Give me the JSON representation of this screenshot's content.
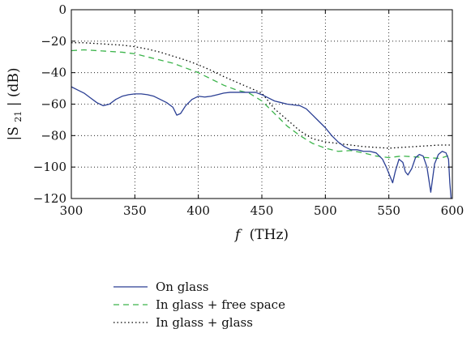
{
  "chart_data": {
    "type": "line",
    "title": "",
    "xlabel_var": "f",
    "xlabel_unit": "(THz)",
    "ylabel_prefix": "|S",
    "ylabel_sub": "21",
    "ylabel_suffix": "| (dB)",
    "xlim": [
      300,
      600
    ],
    "ylim": [
      -120,
      0
    ],
    "xticks": [
      300,
      350,
      400,
      450,
      500,
      550,
      600
    ],
    "yticks": [
      0,
      -20,
      -40,
      -60,
      -80,
      -100,
      -120
    ],
    "xtick_labels": [
      "300",
      "350",
      "400",
      "450",
      "500",
      "550",
      "600"
    ],
    "ytick_labels": [
      "0",
      "−20",
      "−40",
      "−60",
      "−80",
      "−100",
      "−120"
    ],
    "grid": true,
    "legend_position": "below",
    "series": [
      {
        "name": "On glass",
        "color": "#2b3f94",
        "style": "solid",
        "x": [
          300,
          305,
          310,
          315,
          320,
          325,
          330,
          335,
          340,
          345,
          350,
          355,
          360,
          365,
          370,
          375,
          380,
          383,
          386,
          390,
          395,
          400,
          405,
          410,
          415,
          420,
          425,
          430,
          435,
          440,
          445,
          450,
          455,
          460,
          465,
          470,
          475,
          480,
          485,
          490,
          495,
          500,
          505,
          510,
          515,
          520,
          525,
          530,
          535,
          540,
          545,
          548,
          551,
          553,
          555,
          558,
          561,
          563,
          565,
          568,
          571,
          574,
          577,
          580,
          583,
          586,
          589,
          592,
          595,
          597,
          598,
          599,
          600
        ],
        "y": [
          -49,
          -51,
          -53,
          -56,
          -59,
          -61,
          -60,
          -57,
          -55,
          -54,
          -53.5,
          -53.5,
          -54,
          -55,
          -57,
          -59,
          -62,
          -67,
          -66,
          -61,
          -57,
          -55,
          -55.5,
          -55,
          -54,
          -53,
          -52.5,
          -52.5,
          -52.5,
          -52.5,
          -52.5,
          -54,
          -56,
          -58,
          -59,
          -60,
          -60.5,
          -61,
          -63,
          -67,
          -71,
          -75,
          -80,
          -84,
          -87,
          -89,
          -89,
          -90,
          -90,
          -91,
          -95,
          -100,
          -106,
          -110,
          -103,
          -95,
          -97,
          -103,
          -105,
          -101,
          -94,
          -92,
          -93,
          -100,
          -116,
          -98,
          -92,
          -90,
          -91,
          -95,
          -110,
          -120,
          -120
        ]
      },
      {
        "name": "In glass + free space",
        "color": "#3cb44b",
        "style": "dashed",
        "x": [
          300,
          310,
          320,
          330,
          340,
          350,
          360,
          370,
          380,
          390,
          400,
          410,
          420,
          430,
          440,
          450,
          460,
          470,
          480,
          490,
          500,
          510,
          520,
          530,
          540,
          550,
          560,
          570,
          580,
          590,
          600
        ],
        "y": [
          -26,
          -25.5,
          -26,
          -26.5,
          -27,
          -28,
          -30,
          -32,
          -34,
          -37,
          -40,
          -44,
          -48,
          -51,
          -53,
          -58,
          -66,
          -74,
          -80,
          -85,
          -88,
          -90,
          -89.5,
          -91,
          -93,
          -94,
          -93,
          -93.5,
          -94,
          -94.5,
          -92
        ]
      },
      {
        "name": "In glass + glass",
        "color": "#000000",
        "style": "dotted",
        "x": [
          300,
          310,
          320,
          330,
          340,
          350,
          360,
          370,
          380,
          390,
          400,
          410,
          420,
          430,
          440,
          450,
          460,
          470,
          480,
          490,
          500,
          510,
          520,
          530,
          540,
          550,
          560,
          570,
          580,
          590,
          600
        ],
        "y": [
          -21,
          -21,
          -21.5,
          -22,
          -22.5,
          -23.5,
          -25,
          -27,
          -29.5,
          -32,
          -35,
          -38.5,
          -42.5,
          -46,
          -49.5,
          -53,
          -63,
          -70,
          -77,
          -82,
          -84,
          -85,
          -86,
          -87,
          -87.5,
          -88,
          -87.5,
          -87,
          -86.5,
          -86,
          -86
        ]
      }
    ]
  }
}
